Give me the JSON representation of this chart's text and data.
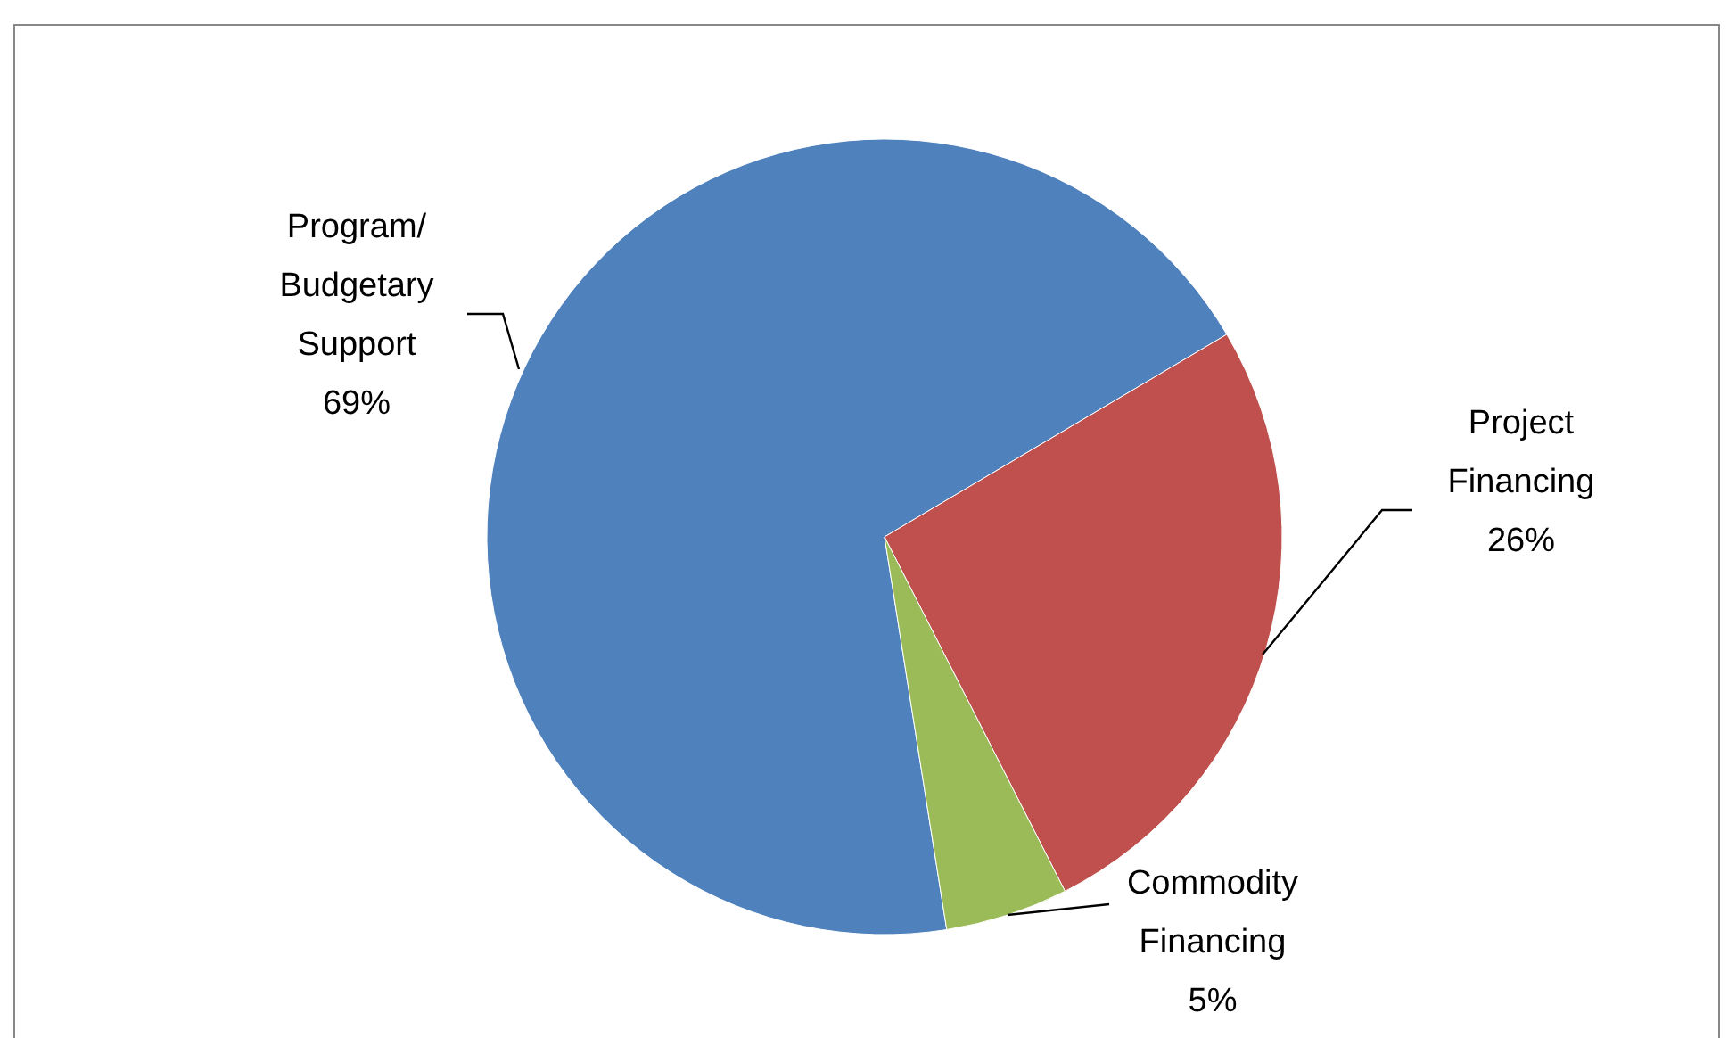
{
  "chart_data": {
    "type": "pie",
    "categories": [
      "Program/ Budgetary Support",
      "Project Financing",
      "Commodity Financing"
    ],
    "values": [
      69,
      26,
      5
    ],
    "value_labels": [
      "69%",
      "26%",
      "5%"
    ],
    "colors": [
      "#4f81bd",
      "#c0504d",
      "#9bbb59"
    ]
  }
}
